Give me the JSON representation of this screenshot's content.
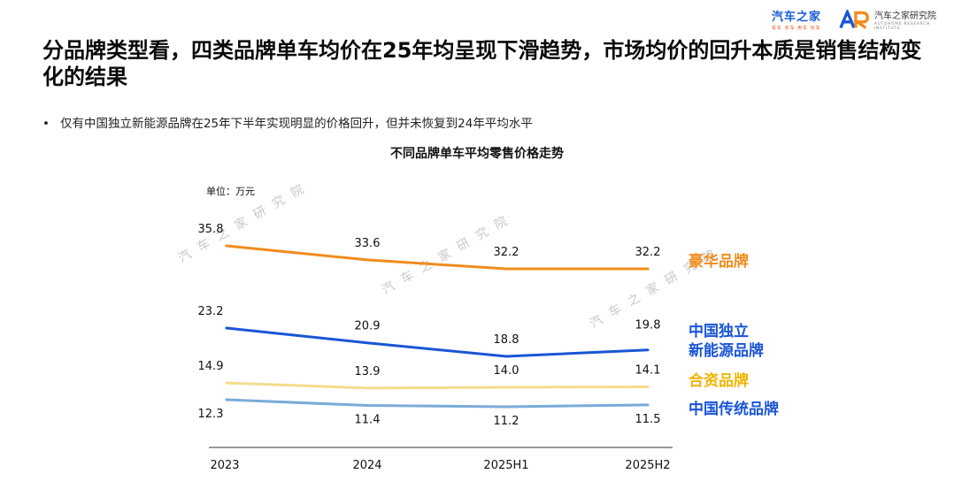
{
  "logos": {
    "autohome_main": "汽车之家",
    "autohome_sub": "看车 买车 用车 玩车",
    "institute_name": "汽车之家研究院",
    "institute_sub": "AUTOHOME RESEARCH INSTITUTE"
  },
  "title": "分品牌类型看，四类品牌单车均价在25年均呈现下滑趋势，市场均价的回升本质是销售结构变化的结果",
  "bullet": "仅有中国独立新能源品牌在25年下半年实现明显的价格回升，但并未恢复到24年平均水平",
  "watermark": "汽 车 之 家 研 究 院",
  "colors": {
    "luxury": "#f08c1e",
    "china_nev": "#1a55d6",
    "jv": "#f5dc8c",
    "china_traditional": "#7aabd8"
  },
  "chart_data": {
    "type": "line",
    "title": "不同品牌单车平均零售价格走势",
    "unit_label": "单位：万元",
    "categories": [
      "2023",
      "2024",
      "2025H1",
      "2025H2"
    ],
    "series": [
      {
        "name": "豪华品牌",
        "values": [
          35.8,
          33.6,
          32.2,
          32.2
        ],
        "color": "#f08c1e"
      },
      {
        "name": "中国独立新能源品牌",
        "label_lines": [
          "中国独立",
          "新能源品牌"
        ],
        "values": [
          23.2,
          20.9,
          18.8,
          19.8
        ],
        "color": "#1a55d6"
      },
      {
        "name": "合资品牌",
        "values": [
          14.9,
          13.9,
          14.0,
          14.1
        ],
        "color": "#f5dc8c",
        "label_color": "#f0b400"
      },
      {
        "name": "中国传统品牌",
        "values": [
          12.3,
          11.4,
          11.2,
          11.5
        ],
        "color": "#7aabd8",
        "label_color": "#1a55d6"
      }
    ]
  }
}
